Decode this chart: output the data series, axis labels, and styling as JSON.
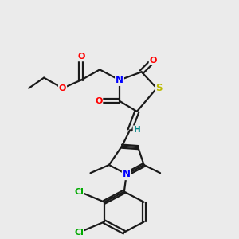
{
  "bg_color": "#ebebeb",
  "bond_color": "#1a1a1a",
  "atom_colors": {
    "O": "#ff0000",
    "N": "#0000ff",
    "S": "#bbbb00",
    "Cl": "#00aa00",
    "H": "#008888",
    "C": "#1a1a1a"
  },
  "font_size": 7.5
}
